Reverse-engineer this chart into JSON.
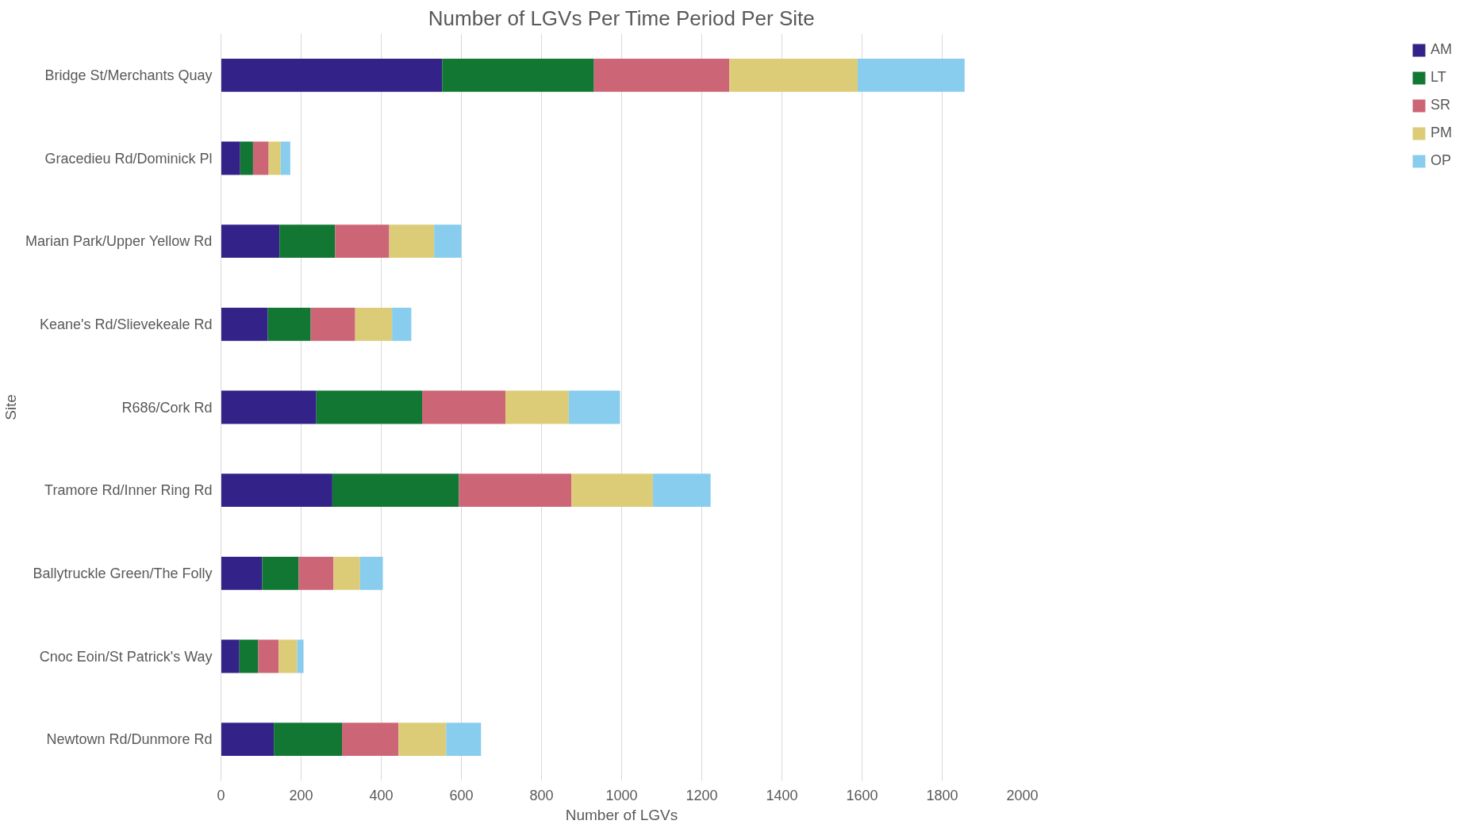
{
  "chart_data": {
    "type": "bar",
    "orientation": "horizontal",
    "stacked": true,
    "title": "Number of LGVs Per Time Period Per Site",
    "xlabel": "Number of LGVs",
    "ylabel": "Site",
    "categories": [
      "Bridge St/Merchants Quay",
      "Gracedieu Rd/Dominick Pl",
      "Marian Park/Upper Yellow Rd",
      "Keane's Rd/Slievekeale Rd",
      "R686/Cork Rd",
      "Tramore Rd/Inner Ring Rd",
      "Ballytruckle Green/The Folly",
      "Cnoc Eoin/St Patrick's Way",
      "Newtown Rd/Dunmore Rd"
    ],
    "series": [
      {
        "name": "AM",
        "color": "#332288",
        "values": [
          552,
          48,
          146,
          117,
          238,
          278,
          103,
          46,
          132
        ]
      },
      {
        "name": "LT",
        "color": "#117733",
        "values": [
          379,
          32,
          139,
          107,
          264,
          316,
          91,
          47,
          170
        ]
      },
      {
        "name": "SR",
        "color": "#cc6677",
        "values": [
          338,
          39,
          135,
          111,
          208,
          281,
          87,
          51,
          141
        ]
      },
      {
        "name": "PM",
        "color": "#ddcc77",
        "values": [
          320,
          30,
          112,
          92,
          158,
          203,
          66,
          46,
          119
        ]
      },
      {
        "name": "OP",
        "color": "#88ccee",
        "values": [
          267,
          24,
          68,
          48,
          128,
          144,
          57,
          16,
          87
        ]
      }
    ],
    "xlim": [
      0,
      2000
    ],
    "xticks": [
      0,
      200,
      400,
      600,
      800,
      1000,
      1200,
      1400,
      1600,
      1800,
      2000
    ],
    "grid": "x",
    "legend": "right"
  }
}
